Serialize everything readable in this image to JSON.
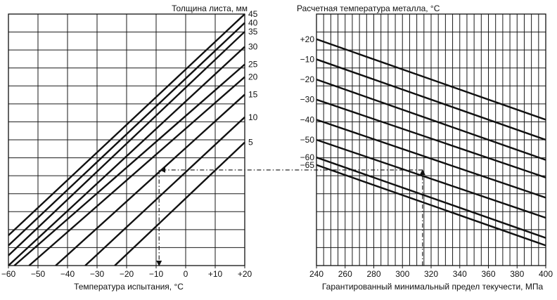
{
  "chart_data": [
    {
      "type": "line",
      "panel": "left",
      "title": "Толщина листа, мм",
      "xlabel": "Температура испытания, °C",
      "xlim": [
        -60,
        20
      ],
      "x_ticks": [
        "−60",
        "−50",
        "−40",
        "−30",
        "−20",
        "−10",
        "0",
        "+10",
        "+20"
      ],
      "x_tick_values": [
        -60,
        -50,
        -40,
        -30,
        -20,
        -10,
        0,
        10,
        20
      ],
      "grid": true,
      "series": [
        {
          "name": "45",
          "x": [
            -60,
            20
          ],
          "y": [
            0.12,
            1.0
          ]
        },
        {
          "name": "40",
          "x": [
            -60,
            20
          ],
          "y": [
            0.08,
            0.965
          ]
        },
        {
          "name": "35",
          "x": [
            -60,
            20
          ],
          "y": [
            0.04,
            0.93
          ]
        },
        {
          "name": "30",
          "x": [
            -60,
            20
          ],
          "y": [
            0.0,
            0.87
          ]
        },
        {
          "name": "25",
          "x": [
            -58,
            20
          ],
          "y": [
            0.0,
            0.8
          ]
        },
        {
          "name": "20",
          "x": [
            -53,
            20
          ],
          "y": [
            0.0,
            0.75
          ]
        },
        {
          "name": "15",
          "x": [
            -44,
            20
          ],
          "y": [
            0.0,
            0.68
          ]
        },
        {
          "name": "10",
          "x": [
            -34,
            20
          ],
          "y": [
            0.0,
            0.59
          ]
        },
        {
          "name": "5",
          "x": [
            -24,
            20
          ],
          "y": [
            0.0,
            0.49
          ]
        }
      ],
      "example_reading": {
        "y": 0.38,
        "x": -9
      }
    },
    {
      "type": "line",
      "panel": "right",
      "title": "Расчетная температура металла, °C",
      "xlabel": "Гарантированный минимальный предел текучести, МПа",
      "xlim": [
        240,
        400
      ],
      "x_ticks": [
        "240",
        "260",
        "280",
        "300",
        "320",
        "340",
        "360",
        "380",
        "400"
      ],
      "x_tick_values": [
        240,
        260,
        280,
        300,
        320,
        340,
        360,
        380,
        400
      ],
      "grid": true,
      "series": [
        {
          "name": "+20",
          "x": [
            240,
            400
          ],
          "y": [
            0.9,
            0.58
          ]
        },
        {
          "name": "−10",
          "x": [
            240,
            400
          ],
          "y": [
            0.82,
            0.5
          ]
        },
        {
          "name": "−20",
          "x": [
            240,
            400
          ],
          "y": [
            0.74,
            0.42
          ]
        },
        {
          "name": "−30",
          "x": [
            240,
            400
          ],
          "y": [
            0.66,
            0.35
          ]
        },
        {
          "name": "−40",
          "x": [
            240,
            400
          ],
          "y": [
            0.58,
            0.27
          ]
        },
        {
          "name": "−50",
          "x": [
            240,
            400
          ],
          "y": [
            0.5,
            0.19
          ]
        },
        {
          "name": "−60",
          "x": [
            240,
            400
          ],
          "y": [
            0.43,
            0.11
          ]
        },
        {
          "name": "−65",
          "x": [
            240,
            400
          ],
          "y": [
            0.4,
            0.08
          ]
        }
      ],
      "example_reading": {
        "x": 314,
        "y": 0.38
      }
    }
  ]
}
